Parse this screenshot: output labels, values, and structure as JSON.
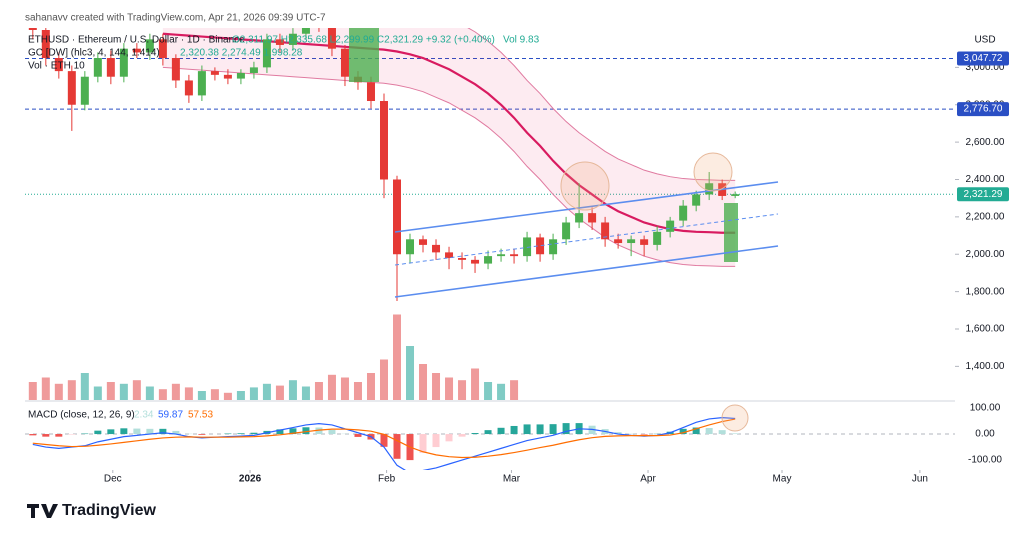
{
  "chart_data": {
    "type": "candlestick",
    "watermark": "sahanavv created with TradingView.com, Apr 21, 2026 09:39 UTC-7",
    "symbol": "ETHUSD · Ethereum / U.S. Dollar · 1D · Binance",
    "ohlc": "O2,311.97 H2,335.68 L2,299.99 C2,321.29 +9.32 (+0.40%)",
    "volume_text": "Vol 9.83",
    "indicator_label": "GC [DW] (hlc3, 4, 144, 1.414)",
    "indicator_values": "2,320.38 2,274.49 1,998.28",
    "volume_label": "Vol · ETH 10",
    "currency": "USD",
    "brand": "TradingView",
    "up_color": "#4caf50",
    "down_color": "#e53935",
    "open": [
      3300,
      3200,
      3050,
      2980,
      2800,
      2950,
      3050,
      2950,
      3100,
      3080,
      3150,
      3050,
      2930,
      2850,
      2980,
      2960,
      2940,
      2970,
      3000,
      3150,
      3120,
      3180,
      3250,
      3220,
      3100,
      2950,
      2920,
      2820,
      2400,
      2000,
      2080,
      2050,
      2010,
      1980,
      1970,
      1950,
      1990,
      2000,
      1990,
      2090,
      2000,
      2080,
      2170,
      2220,
      2170,
      2080,
      2060,
      2080,
      2050,
      2120,
      2180,
      2260,
      2320,
      2380,
      2311.97
    ],
    "high": [
      3340,
      3230,
      3080,
      3010,
      2980,
      3080,
      3090,
      3130,
      3130,
      3180,
      3180,
      3070,
      2960,
      3010,
      3000,
      2990,
      2990,
      3030,
      3180,
      3180,
      3210,
      3280,
      3280,
      3250,
      3120,
      2980,
      2950,
      2860,
      2420,
      2110,
      2100,
      2080,
      2040,
      2010,
      1990,
      2020,
      2030,
      2030,
      2120,
      2110,
      2110,
      2200,
      2380,
      2250,
      2200,
      2110,
      2100,
      2100,
      2150,
      2200,
      2290,
      2340,
      2440,
      2400,
      2335.68
    ],
    "low": [
      3150,
      3010,
      2940,
      2660,
      2770,
      2920,
      2910,
      2920,
      3050,
      3040,
      3010,
      2890,
      2810,
      2820,
      2930,
      2910,
      2910,
      2940,
      2970,
      3080,
      3090,
      3150,
      3190,
      3060,
      2900,
      2880,
      2780,
      2300,
      1750,
      1950,
      2010,
      1970,
      1920,
      1920,
      1900,
      1920,
      1960,
      1950,
      1960,
      1960,
      1970,
      2050,
      2140,
      2130,
      2040,
      2030,
      1990,
      1990,
      2020,
      2090,
      2150,
      2230,
      2290,
      2290,
      2299.99
    ],
    "close": [
      3200,
      3050,
      2980,
      2800,
      2950,
      3050,
      2950,
      3100,
      3080,
      3150,
      3050,
      2930,
      2850,
      2980,
      2960,
      2940,
      2970,
      3000,
      3150,
      3120,
      3180,
      3250,
      3220,
      3100,
      2950,
      2920,
      2820,
      2400,
      2000,
      2080,
      2050,
      2010,
      1980,
      1970,
      1950,
      1990,
      2000,
      1990,
      2090,
      2000,
      2080,
      2170,
      2220,
      2170,
      2080,
      2060,
      2080,
      2050,
      2120,
      2180,
      2260,
      2320,
      2380,
      2311.97,
      2321.29
    ],
    "xlim": [
      -0.6,
      70.9
    ],
    "xticks": [
      {
        "value": 6.15,
        "label": "Dec"
      },
      {
        "value": 16.7,
        "label": "2026"
      },
      {
        "value": 27.2,
        "label": "Feb"
      },
      {
        "value": 36.8,
        "label": "Mar"
      },
      {
        "value": 47.3,
        "label": "Apr"
      },
      {
        "value": 57.6,
        "label": "May"
      },
      {
        "value": 68.2,
        "label": "Jun"
      }
    ],
    "ylim": [
      1220,
      3200
    ],
    "yticks": [
      {
        "value": 1400,
        "label": "1,400.00"
      },
      {
        "value": 1600,
        "label": "1,600.00"
      },
      {
        "value": 1800,
        "label": "1,800.00"
      },
      {
        "value": 2000,
        "label": "2,000.00"
      },
      {
        "value": 2200,
        "label": "2,200.00"
      },
      {
        "value": 2400,
        "label": "2,400.00"
      },
      {
        "value": 2600,
        "label": "2,600.00"
      },
      {
        "value": 2800,
        "label": "2,800.00"
      },
      {
        "value": 3000,
        "label": "3,000.00"
      }
    ],
    "price_lines": [
      {
        "value": 3047.72,
        "label": "3,047.72",
        "color": "#2a4fc4"
      },
      {
        "value": 2776.7,
        "label": "2,776.70",
        "color": "#2a4fc4"
      }
    ],
    "last_price": {
      "value": 2321.29,
      "label": "2,321.29",
      "color": "#22ab94"
    },
    "bands": {
      "line_color": "#d81b60",
      "edge_color": "#e07aa0",
      "fill": "rgba(233,30,99,0.09)",
      "center": [
        null,
        null,
        null,
        null,
        null,
        null,
        null,
        null,
        null,
        null,
        3180,
        3175,
        3170,
        3165,
        3160,
        3155,
        3150,
        3145,
        3140,
        3135,
        3130,
        3125,
        3120,
        3115,
        3110,
        3105,
        3100,
        3095,
        3085,
        3070,
        3050,
        3020,
        2990,
        2950,
        2910,
        2860,
        2800,
        2730,
        2650,
        2580,
        2500,
        2430,
        2370,
        2320,
        2270,
        2230,
        2200,
        2170,
        2150,
        2135,
        2125,
        2120,
        2118,
        2115,
        2115
      ],
      "upper": [
        null,
        null,
        null,
        null,
        null,
        null,
        null,
        null,
        null,
        null,
        3460,
        3455,
        3450,
        3445,
        3440,
        3435,
        3430,
        3425,
        3420,
        3415,
        3410,
        3405,
        3400,
        3395,
        3390,
        3385,
        3380,
        3375,
        3365,
        3350,
        3330,
        3300,
        3270,
        3230,
        3190,
        3140,
        3080,
        3010,
        2930,
        2860,
        2780,
        2710,
        2650,
        2600,
        2550,
        2510,
        2480,
        2450,
        2430,
        2415,
        2405,
        2400,
        2398,
        2395,
        2395
      ],
      "lower": [
        null,
        null,
        null,
        null,
        null,
        null,
        null,
        null,
        null,
        null,
        3000,
        2995,
        2990,
        2985,
        2980,
        2975,
        2970,
        2965,
        2960,
        2955,
        2950,
        2945,
        2940,
        2935,
        2930,
        2925,
        2920,
        2915,
        2905,
        2890,
        2870,
        2840,
        2810,
        2770,
        2730,
        2680,
        2620,
        2550,
        2470,
        2400,
        2320,
        2250,
        2190,
        2140,
        2090,
        2050,
        2020,
        1990,
        1970,
        1955,
        1945,
        1940,
        1938,
        1935,
        1935
      ]
    },
    "volume": {
      "lim": [
        0,
        100
      ],
      "up_color": "#80cbc4",
      "down_color": "#ef9a9a",
      "values": [
        20,
        25,
        18,
        22,
        30,
        15,
        20,
        18,
        22,
        15,
        12,
        18,
        14,
        10,
        12,
        8,
        10,
        14,
        18,
        16,
        22,
        15,
        20,
        28,
        25,
        20,
        30,
        45,
        95,
        60,
        40,
        30,
        25,
        22,
        35,
        20,
        18,
        22,
        null,
        null,
        null,
        null,
        null,
        null,
        null,
        null,
        null,
        null,
        null,
        null,
        null,
        null,
        null,
        null,
        null
      ]
    },
    "macd": {
      "title": "MACD (close, 12, 26, 9)",
      "ylim": [
        -138,
        123
      ],
      "yticks": [
        {
          "value": 100,
          "label": "100.00"
        },
        {
          "value": 0,
          "label": "0.00"
        },
        {
          "value": -100,
          "label": "-100.00"
        }
      ],
      "histogram": {
        "color": "#26a69a",
        "light_color": "#b2dfdb",
        "down_color": "#ef5350",
        "down_light_color": "#ffcdd2",
        "values": [
          -5,
          -10,
          -10,
          -2,
          2,
          13,
          18,
          22,
          21,
          20,
          20,
          12,
          1,
          -3,
          0,
          2,
          3,
          5,
          12,
          18,
          22,
          26,
          25,
          16,
          1,
          -11,
          -21,
          -49,
          -95,
          -100,
          -72,
          -50,
          -28,
          -10,
          4,
          15,
          24,
          31,
          37,
          37,
          38,
          42,
          42,
          32,
          19,
          7,
          1,
          -2,
          1,
          9,
          20,
          25,
          23,
          15,
          2.34
        ]
      },
      "macd_line": {
        "color": "#2962ff",
        "values": [
          -40,
          -50,
          -55,
          -50,
          -45,
          -30,
          -20,
          -10,
          -5,
          0,
          5,
          0,
          -10,
          -15,
          -12,
          -10,
          -8,
          -5,
          5,
          15,
          25,
          35,
          40,
          35,
          20,
          5,
          -10,
          -50,
          -120,
          -150,
          -140,
          -130,
          -115,
          -100,
          -85,
          -70,
          -55,
          -40,
          -25,
          -15,
          -5,
          10,
          20,
          18,
          10,
          0,
          -5,
          -8,
          -5,
          5,
          25,
          45,
          58,
          63,
          59.87
        ]
      },
      "signal_line": {
        "color": "#ff6d00",
        "values": [
          -35,
          -40,
          -45,
          -48,
          -47,
          -43,
          -38,
          -32,
          -26,
          -20,
          -15,
          -12,
          -11,
          -12,
          -12,
          -12,
          -11,
          -10,
          -7,
          -3,
          3,
          9,
          15,
          19,
          19,
          16,
          11,
          -1,
          -25,
          -50,
          -68,
          -80,
          -87,
          -90,
          -89,
          -85,
          -79,
          -71,
          -62,
          -52,
          -43,
          -32,
          -22,
          -14,
          -9,
          -7,
          -6,
          -6,
          -6,
          -4,
          5,
          20,
          35,
          48,
          57.53
        ]
      }
    }
  }
}
